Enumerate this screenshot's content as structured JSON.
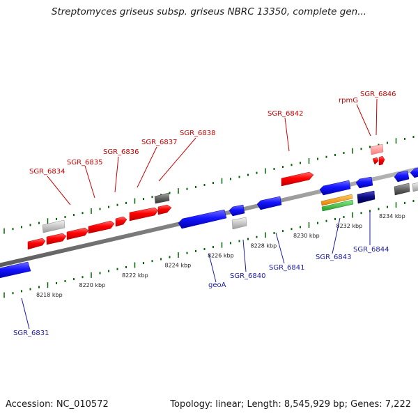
{
  "title": "Streptomyces griseus subsp. griseus NBRC 13350, complete gen...",
  "footer": {
    "accession": "Accession: NC_010572",
    "topology": "Topology: linear; Length: 8,545,929 bp; Genes: 7,222"
  },
  "colors": {
    "forward_gene": "#ff0000",
    "reverse_gene": "#1414ff",
    "pseudo_light": "#c8c8c8",
    "pseudo_dark": "#666666",
    "rna_orange": "#ff9900",
    "rna_green": "#33cc33",
    "dark_navy": "#0a0a80",
    "pink": "#ff9a9a",
    "tick": "#006600",
    "backbone": "#888888",
    "top_label": "#cc0000",
    "bottom_label": "#1a1aa8"
  },
  "ruler": {
    "ticks": [
      {
        "label": "8218 kbp",
        "kbp": 8218
      },
      {
        "label": "8220 kbp",
        "kbp": 8220
      },
      {
        "label": "8222 kbp",
        "kbp": 8222
      },
      {
        "label": "8224 kbp",
        "kbp": 8224
      },
      {
        "label": "8226 kbp",
        "kbp": 8226
      },
      {
        "label": "8228 kbp",
        "kbp": 8228
      },
      {
        "label": "8230 kbp",
        "kbp": 8230
      },
      {
        "label": "8232 kbp",
        "kbp": 8232
      },
      {
        "label": "8234 kbp",
        "kbp": 8234
      }
    ]
  },
  "top_labels": [
    {
      "text": "SGR_6834"
    },
    {
      "text": "SGR_6835"
    },
    {
      "text": "SGR_6836"
    },
    {
      "text": "SGR_6837"
    },
    {
      "text": "SGR_6838"
    },
    {
      "text": "SGR_6842"
    },
    {
      "text": "rpmG"
    },
    {
      "text": "SGR_6846"
    }
  ],
  "bottom_labels": [
    {
      "text": "SGR_6831"
    },
    {
      "text": "geoA"
    },
    {
      "text": "SGR_6840"
    },
    {
      "text": "SGR_6841"
    },
    {
      "text": "SGR_6843"
    },
    {
      "text": "SGR_6844"
    }
  ]
}
